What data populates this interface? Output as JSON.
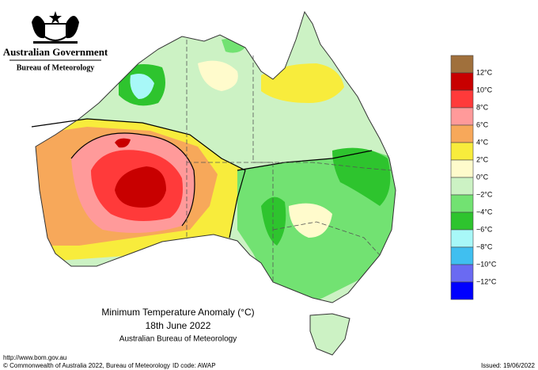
{
  "header": {
    "government": "Australian Government",
    "bureau": "Bureau of Meteorology"
  },
  "title": {
    "line1": "Minimum Temperature Anomaly (°C)",
    "line2": "18th June 2022",
    "line3": "Australian Bureau of Meteorology"
  },
  "legend": {
    "colors": [
      "#a0703c",
      "#c80000",
      "#ff3a3a",
      "#ff9a9a",
      "#f7a85a",
      "#f8ec3c",
      "#fffbcc",
      "#ccf2c4",
      "#72e272",
      "#2ec42e",
      "#a8f8f8",
      "#40bff0",
      "#6a6af2",
      "#0000ff"
    ],
    "labels": [
      "12°C",
      "10°C",
      "8°C",
      "6°C",
      "4°C",
      "2°C",
      "0°C",
      "−2°C",
      "−4°C",
      "−6°C",
      "−8°C",
      "−10°C",
      "−12°C"
    ]
  },
  "footer": {
    "url": "http://www.bom.gov.au",
    "copyright": "© Commonwealth of Australia 2022, Bureau of Meteorology",
    "id_code": "ID code: AWAP",
    "issued": "Issued: 19/06/2022"
  }
}
